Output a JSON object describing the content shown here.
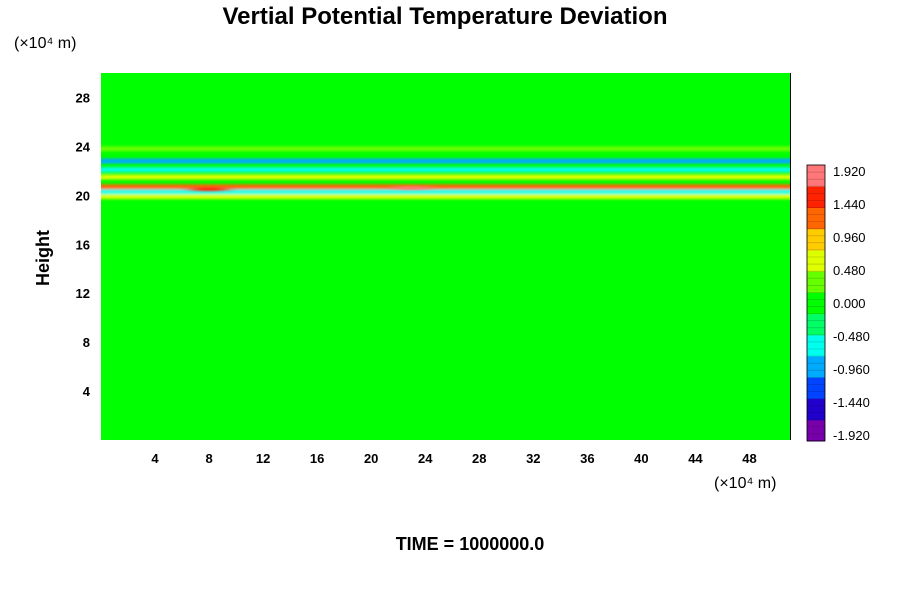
{
  "chart_data": {
    "type": "heatmap",
    "title": "Vertial Potential Temperature Deviation",
    "ylabel": "Height",
    "y_unit": "(×10⁴ m)",
    "x_unit": "(×10⁴ m)",
    "footer": "TIME = 1000000.0",
    "xlim": [
      0,
      51
    ],
    "ylim": [
      0,
      30
    ],
    "x_ticks": [
      4,
      8,
      12,
      16,
      20,
      24,
      28,
      32,
      36,
      40,
      44,
      48
    ],
    "x_tick_labels": [
      "4",
      "8",
      "12",
      "16",
      "20",
      "24",
      "28",
      "32",
      "36",
      "40",
      "44",
      "48"
    ],
    "y_ticks": [
      4,
      8,
      12,
      16,
      20,
      24,
      28
    ],
    "y_tick_labels": [
      "4",
      "8",
      "12",
      "16",
      "20",
      "24",
      "28"
    ],
    "background_value": 0.0,
    "bands": [
      {
        "y": 19.9,
        "value": 0.7
      },
      {
        "y": 20.3,
        "value": -0.6
      },
      {
        "y": 20.7,
        "value": 1.1
      },
      {
        "y": 21.5,
        "value": 0.6
      },
      {
        "y": 22.1,
        "value": -0.5
      },
      {
        "y": 22.8,
        "value": -0.8
      },
      {
        "y": 23.8,
        "value": 0.4
      }
    ],
    "hotspots": [
      {
        "x": 8,
        "y": 20.5,
        "value": 1.5
      },
      {
        "x": 23,
        "y": 20.6,
        "value": 1.7
      }
    ],
    "colorbar": {
      "min": -1.92,
      "max": 1.92,
      "tick_values": [
        1.92,
        1.44,
        0.96,
        0.48,
        0.0,
        -0.48,
        -0.96,
        -1.44,
        -1.92
      ],
      "tick_labels": [
        "1.920",
        "1.440",
        "0.960",
        "0.480",
        "0.000",
        "-0.480",
        "-0.960",
        "-1.440",
        "-1.920"
      ],
      "colors": [
        "#7700aa",
        "#2200cc",
        "#0044ff",
        "#00aaff",
        "#00ffee",
        "#00ff66",
        "#00ff00",
        "#66ff00",
        "#ddff00",
        "#ffcc00",
        "#ff6600",
        "#ff2200",
        "#ff7777"
      ]
    }
  }
}
